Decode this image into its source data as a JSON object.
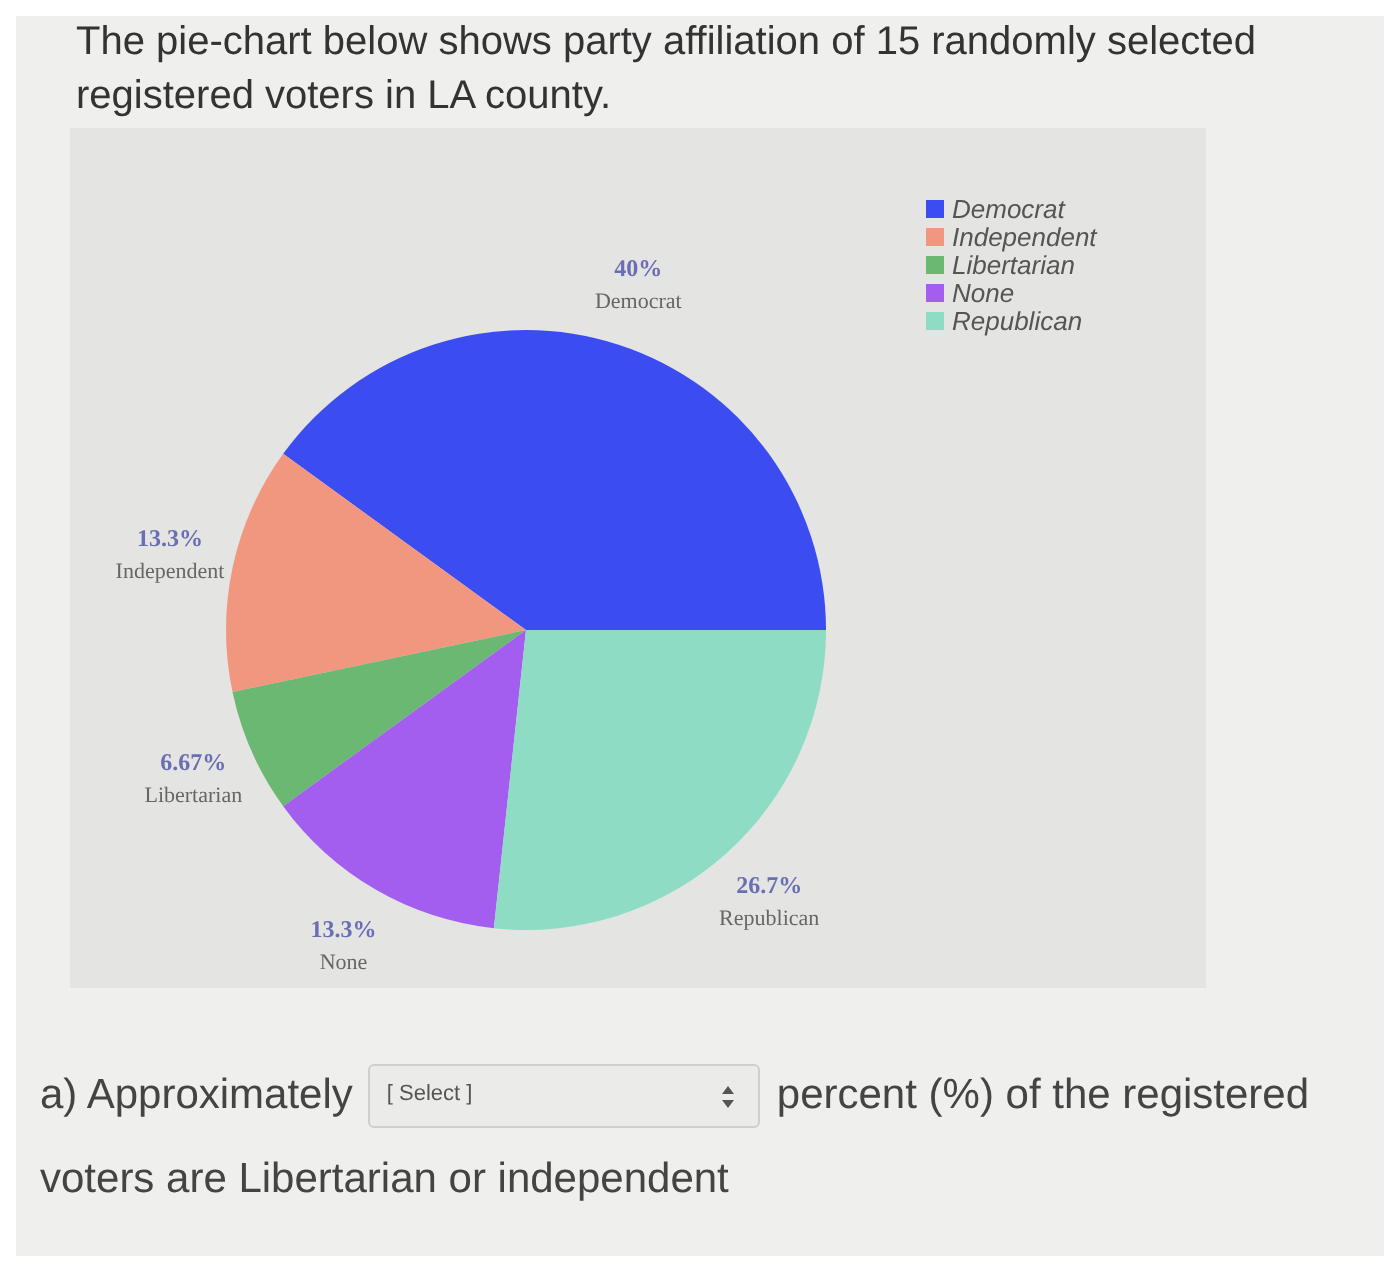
{
  "chart_data": {
    "type": "pie",
    "title": "The pie-chart below shows party affiliation of 15 randomly selected registered voters in LA county.",
    "categories": [
      "Democrat",
      "Independent",
      "Libertarian",
      "None",
      "Republican"
    ],
    "values": [
      40,
      13.3,
      6.67,
      13.3,
      26.7
    ],
    "colors": [
      "#3b4cf0",
      "#f2977f",
      "#6ab872",
      "#a35ef0",
      "#8edcc3"
    ],
    "value_labels": [
      "40%",
      "13.3%",
      "6.67%",
      "13.3%",
      "26.7%"
    ],
    "legend": "top right",
    "annotations": [
      "a) Approximately",
      "[ Select ]",
      "percent (%) of the registered",
      "voters are Libertarian or independent"
    ]
  }
}
